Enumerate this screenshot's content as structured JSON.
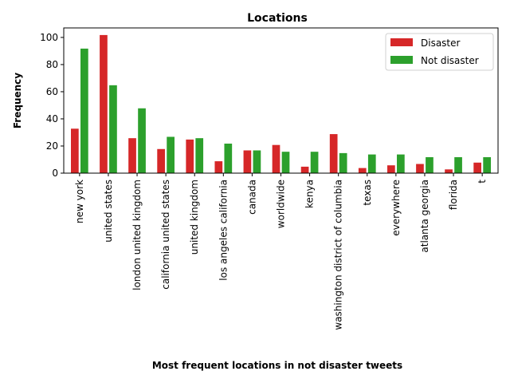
{
  "chart_data": {
    "type": "bar",
    "title": "Locations",
    "xlabel": "Most frequent locations in not disaster tweets",
    "ylabel": "Frequency",
    "ylim": [
      0,
      107
    ],
    "yticks": [
      "0",
      "20",
      "40",
      "60",
      "80",
      "100"
    ],
    "categories": [
      "new york",
      "united states",
      "london united kingdom",
      "california united states",
      "united kingdom",
      "los angeles california",
      "canada",
      "worldwide",
      "kenya",
      "washington district of columbia",
      "texas",
      "everywhere",
      "atlanta georgia",
      "florida",
      "t"
    ],
    "series": [
      {
        "name": "Disaster",
        "color": "#d62728",
        "values": [
          33,
          102,
          26,
          18,
          25,
          9,
          17,
          21,
          5,
          29,
          4,
          6,
          7,
          3,
          8
        ]
      },
      {
        "name": "Not disaster",
        "color": "#2ca02c",
        "values": [
          92,
          65,
          48,
          27,
          26,
          22,
          17,
          16,
          16,
          15,
          14,
          14,
          12,
          12,
          12
        ]
      }
    ],
    "legend_position": "top-right",
    "grid": false
  }
}
